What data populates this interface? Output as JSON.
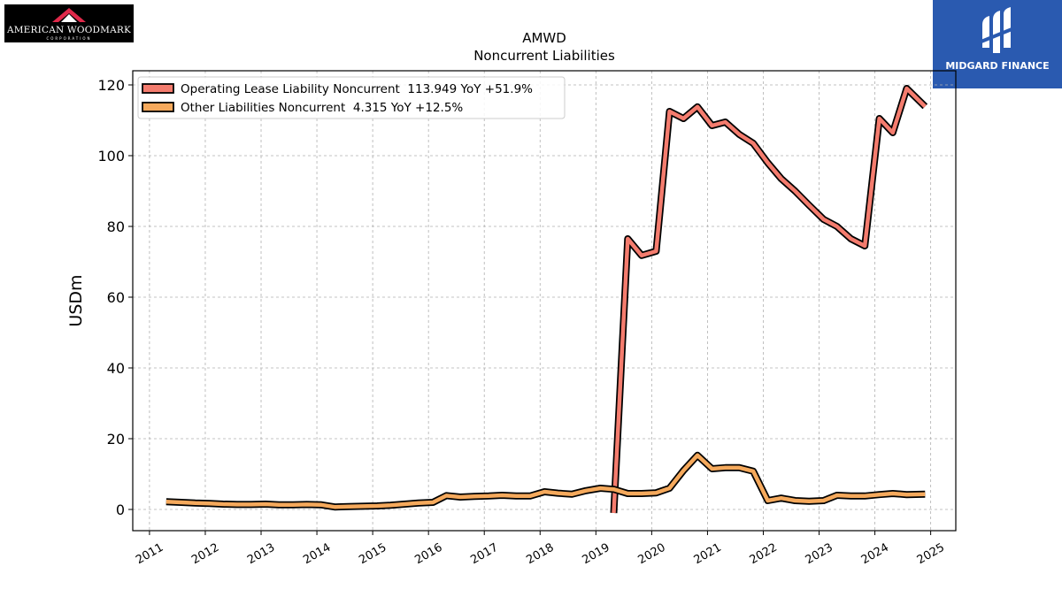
{
  "logos": {
    "left": {
      "text": "AMERICAN WOODMARK",
      "sub": "CORPORATION",
      "bg": "#000000",
      "accent": "#e0294a"
    },
    "right": {
      "text": "MIDGARD FINANCE",
      "bg": "#2a5ab0"
    }
  },
  "chart_data": {
    "type": "line",
    "title": "AMWD",
    "subtitle": "Noncurrent  Liabilities",
    "ylabel": "USDm",
    "xlabel": "",
    "xlim": [
      2010.7,
      2025.45
    ],
    "ylim": [
      -6,
      124
    ],
    "xticks": [
      2011,
      2012,
      2013,
      2014,
      2015,
      2016,
      2017,
      2018,
      2019,
      2020,
      2021,
      2022,
      2023,
      2024,
      2025
    ],
    "yticks": [
      0,
      20,
      40,
      60,
      80,
      100,
      120
    ],
    "grid": true,
    "legend_position": "top-left",
    "series": [
      {
        "name": "Operating Lease Liability Noncurrent  113.949 YoY +51.9%",
        "color": "#f47c6e",
        "x": [
          2019.32,
          2019.57,
          2019.82,
          2020.08,
          2020.32,
          2020.57,
          2020.82,
          2021.08,
          2021.32,
          2021.57,
          2021.82,
          2022.08,
          2022.32,
          2022.57,
          2022.82,
          2023.08,
          2023.32,
          2023.57,
          2023.82,
          2024.08,
          2024.32,
          2024.57,
          2024.9
        ],
        "y": [
          -1.0,
          76.5,
          71.8,
          73.0,
          112.5,
          110.5,
          113.8,
          108.5,
          109.5,
          106.0,
          103.5,
          98.0,
          93.5,
          90.0,
          86.0,
          82.0,
          80.0,
          76.5,
          74.5,
          110.5,
          106.5,
          119.0,
          113.9
        ]
      },
      {
        "name": "Other Liabilities Noncurrent  4.315 YoY +12.5%",
        "color": "#f5a95c",
        "x": [
          2011.3,
          2011.57,
          2011.82,
          2012.08,
          2012.32,
          2012.57,
          2012.82,
          2013.08,
          2013.32,
          2013.57,
          2013.82,
          2014.08,
          2014.32,
          2014.57,
          2014.82,
          2015.08,
          2015.32,
          2015.57,
          2015.82,
          2016.08,
          2016.32,
          2016.57,
          2016.82,
          2017.08,
          2017.32,
          2017.57,
          2017.82,
          2018.08,
          2018.32,
          2018.57,
          2018.82,
          2019.08,
          2019.32,
          2019.57,
          2019.82,
          2020.08,
          2020.32,
          2020.57,
          2020.82,
          2021.08,
          2021.32,
          2021.57,
          2021.82,
          2022.08,
          2022.32,
          2022.57,
          2022.82,
          2023.08,
          2023.32,
          2023.57,
          2023.82,
          2024.08,
          2024.32,
          2024.57,
          2024.9
        ],
        "y": [
          2.2,
          2.0,
          1.8,
          1.7,
          1.5,
          1.4,
          1.4,
          1.5,
          1.3,
          1.3,
          1.4,
          1.3,
          0.7,
          0.8,
          0.9,
          1.0,
          1.2,
          1.5,
          1.8,
          2.0,
          3.9,
          3.5,
          3.7,
          3.8,
          4.0,
          3.8,
          3.8,
          5.0,
          4.6,
          4.3,
          5.3,
          6.0,
          5.7,
          4.5,
          4.5,
          4.7,
          6.0,
          11.0,
          15.3,
          11.5,
          11.8,
          11.8,
          10.8,
          2.5,
          3.2,
          2.5,
          2.3,
          2.5,
          4.0,
          3.8,
          3.8,
          4.2,
          4.5,
          4.2,
          4.3
        ]
      }
    ]
  }
}
